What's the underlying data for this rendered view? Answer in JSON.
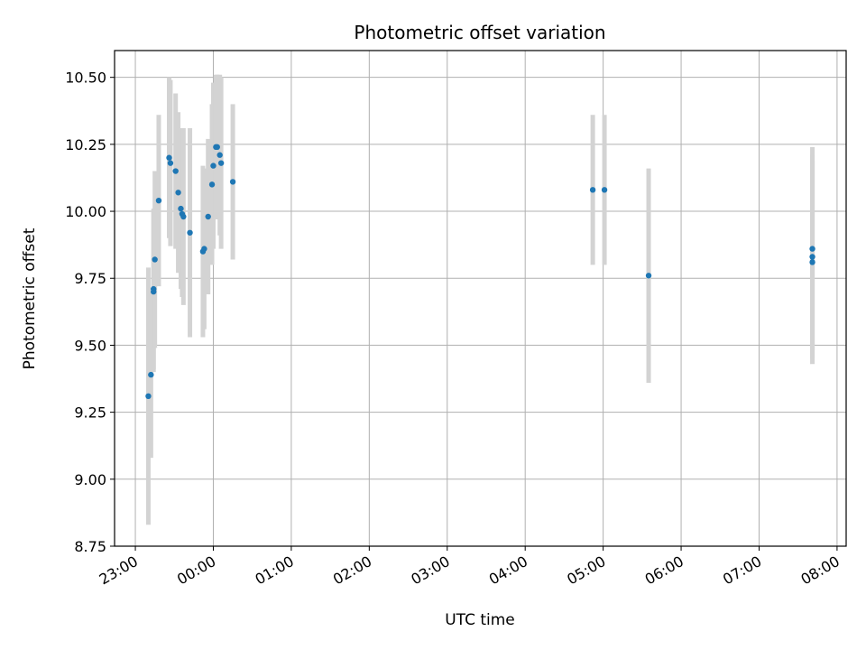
{
  "chart_data": {
    "type": "scatter",
    "title": "Photometric offset variation",
    "xlabel": "UTC time",
    "ylabel": "Photometric offset",
    "xlim": [
      "22:44",
      "08:07"
    ],
    "ylim": [
      8.75,
      10.6
    ],
    "grid": true,
    "x_ticks": [
      "23:00",
      "00:00",
      "01:00",
      "02:00",
      "03:00",
      "04:00",
      "05:00",
      "06:00",
      "07:00",
      "08:00"
    ],
    "y_ticks": [
      "8.75",
      "9.00",
      "9.25",
      "9.50",
      "9.75",
      "10.00",
      "10.25",
      "10.50"
    ],
    "marker_color": "#1f77b4",
    "errorbar_color": "#d3d3d3",
    "points": [
      {
        "t": "23:10",
        "y": 9.31,
        "err": 0.48
      },
      {
        "t": "23:12",
        "y": 9.39,
        "err": 0.31
      },
      {
        "t": "23:14",
        "y": 9.7,
        "err": 0.3
      },
      {
        "t": "23:14",
        "y": 9.71,
        "err": 0.3
      },
      {
        "t": "23:15",
        "y": 9.82,
        "err": 0.33
      },
      {
        "t": "23:18",
        "y": 10.04,
        "err": 0.32
      },
      {
        "t": "23:26",
        "y": 10.2,
        "err": 0.3
      },
      {
        "t": "23:27",
        "y": 10.18,
        "err": 0.31
      },
      {
        "t": "23:31",
        "y": 10.15,
        "err": 0.29
      },
      {
        "t": "23:33",
        "y": 10.07,
        "err": 0.3
      },
      {
        "t": "23:35",
        "y": 10.01,
        "err": 0.3
      },
      {
        "t": "23:36",
        "y": 9.99,
        "err": 0.31
      },
      {
        "t": "23:37",
        "y": 9.98,
        "err": 0.33
      },
      {
        "t": "23:42",
        "y": 9.92,
        "err": 0.39
      },
      {
        "t": "23:52",
        "y": 9.85,
        "err": 0.32
      },
      {
        "t": "23:53",
        "y": 9.86,
        "err": 0.3
      },
      {
        "t": "23:56",
        "y": 9.98,
        "err": 0.29
      },
      {
        "t": "23:59",
        "y": 10.1,
        "err": 0.3
      },
      {
        "t": "00:00",
        "y": 10.17,
        "err": 0.31
      },
      {
        "t": "00:02",
        "y": 10.24,
        "err": 0.27
      },
      {
        "t": "00:03",
        "y": 10.24,
        "err": 0.27
      },
      {
        "t": "00:05",
        "y": 10.21,
        "err": 0.3
      },
      {
        "t": "00:06",
        "y": 10.18,
        "err": 0.32
      },
      {
        "t": "00:15",
        "y": 10.11,
        "err": 0.29
      },
      {
        "t": "04:52",
        "y": 10.08,
        "err": 0.28
      },
      {
        "t": "05:01",
        "y": 10.08,
        "err": 0.28
      },
      {
        "t": "05:35",
        "y": 9.76,
        "err": 0.4
      },
      {
        "t": "07:41",
        "y": 9.86,
        "err": 0.38
      },
      {
        "t": "07:41",
        "y": 9.83,
        "err": 0.38
      },
      {
        "t": "07:41",
        "y": 9.81,
        "err": 0.38
      }
    ]
  }
}
